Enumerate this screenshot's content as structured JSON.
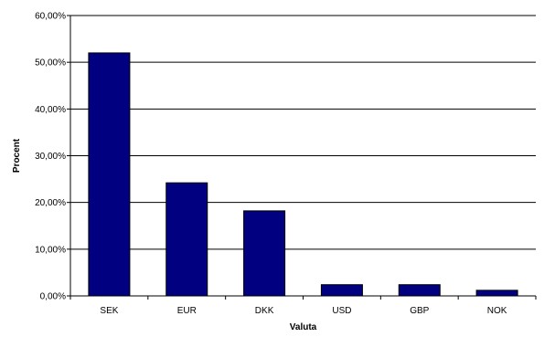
{
  "chart_data": {
    "type": "bar",
    "title": "",
    "xlabel": "Valuta",
    "ylabel": "Procent",
    "categories": [
      "SEK",
      "EUR",
      "DKK",
      "USD",
      "GBP",
      "NOK"
    ],
    "values": [
      52.0,
      24.2,
      18.2,
      2.4,
      2.4,
      1.2
    ],
    "ylim": [
      0,
      60
    ],
    "yticks": [
      "0,00%",
      "10,00%",
      "20,00%",
      "30,00%",
      "40,00%",
      "50,00%",
      "60,00%"
    ],
    "grid": true,
    "legend": "none",
    "bar_color": "#000080"
  }
}
